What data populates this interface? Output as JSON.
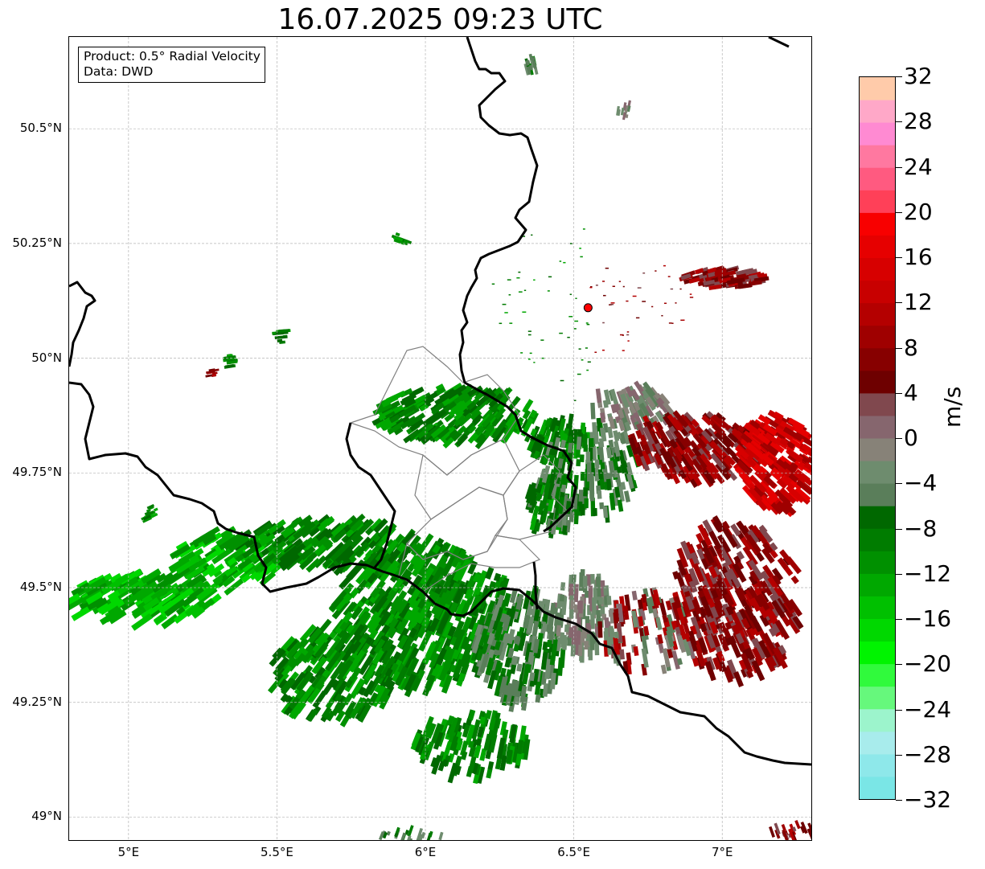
{
  "title": "16.07.2025 09:23 UTC",
  "info_box": {
    "product": "Product: 0.5° Radial Velocity",
    "data_source": "Data: DWD"
  },
  "map": {
    "lon_range": [
      4.8,
      7.3
    ],
    "lat_range": [
      48.95,
      50.7
    ],
    "gridlines": true,
    "lat_ticks": [
      "50.5°N",
      "50.25°N",
      "50°N",
      "49.75°N",
      "49.5°N",
      "49.25°N",
      "49°N"
    ],
    "lon_ticks": [
      "5°E",
      "5.5°E",
      "6°E",
      "6.5°E",
      "7°E"
    ],
    "radar_site": {
      "lon": 6.548,
      "lat": 50.11,
      "color": "#ff0000"
    },
    "border_color": "#000000",
    "subdivision_color": "#808080"
  },
  "colorbar": {
    "unit": "m/s",
    "min": -32,
    "max": 32,
    "tick_labels": [
      "32",
      "28",
      "24",
      "20",
      "16",
      "12",
      "8",
      "4",
      "0",
      "−4",
      "−8",
      "−12",
      "−16",
      "−20",
      "−24",
      "−28",
      "−32"
    ],
    "colors_low_to_high": [
      "#7ae6e6",
      "#8ee8ea",
      "#a8ecec",
      "#9cf4cc",
      "#66f87c",
      "#30fa3c",
      "#00f400",
      "#00d800",
      "#00c000",
      "#00a800",
      "#009000",
      "#007c00",
      "#006800",
      "#5a7e5a",
      "#6e8c6e",
      "#878278",
      "#86666e",
      "#80484e",
      "#6e0000",
      "#870000",
      "#9f0000",
      "#b40000",
      "#c80000",
      "#d70000",
      "#e60000",
      "#f80000",
      "#ff4058",
      "#ff5a80",
      "#ff78a0",
      "#ff8ad2",
      "#ffa8c8",
      "#ffcbaa"
    ]
  }
}
